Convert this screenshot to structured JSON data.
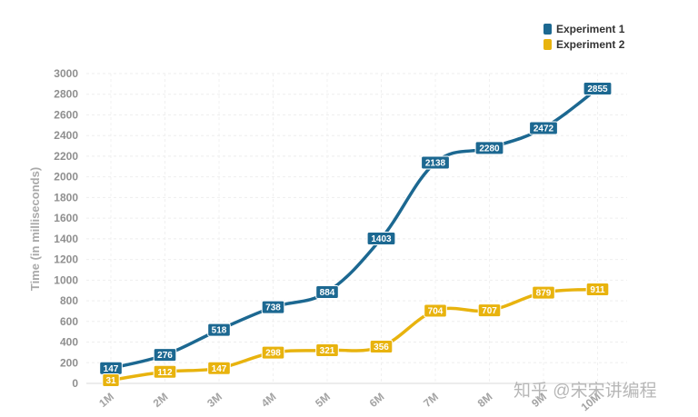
{
  "chart_data": {
    "type": "line",
    "categories": [
      "1M",
      "2M",
      "3M",
      "4M",
      "5M",
      "6M",
      "7M",
      "8M",
      "9M",
      "10M"
    ],
    "series": [
      {
        "name": "Experiment 1",
        "color": "#1c6891",
        "values": [
          147,
          276,
          518,
          738,
          884,
          1403,
          2138,
          2280,
          2472,
          2855
        ]
      },
      {
        "name": "Experiment 2",
        "color": "#e8b30e",
        "values": [
          31,
          112,
          147,
          298,
          321,
          356,
          704,
          707,
          879,
          911
        ]
      }
    ],
    "ylabel": "Time (in milliseconds)",
    "xlabel": "",
    "ylim": [
      0,
      3000
    ],
    "yticks": [
      0,
      200,
      400,
      600,
      800,
      1000,
      1200,
      1400,
      1600,
      1800,
      2000,
      2200,
      2400,
      2600,
      2800,
      3000
    ],
    "grid": true,
    "legend_position": "top-right"
  },
  "watermark": "知乎 @宋宋讲编程"
}
